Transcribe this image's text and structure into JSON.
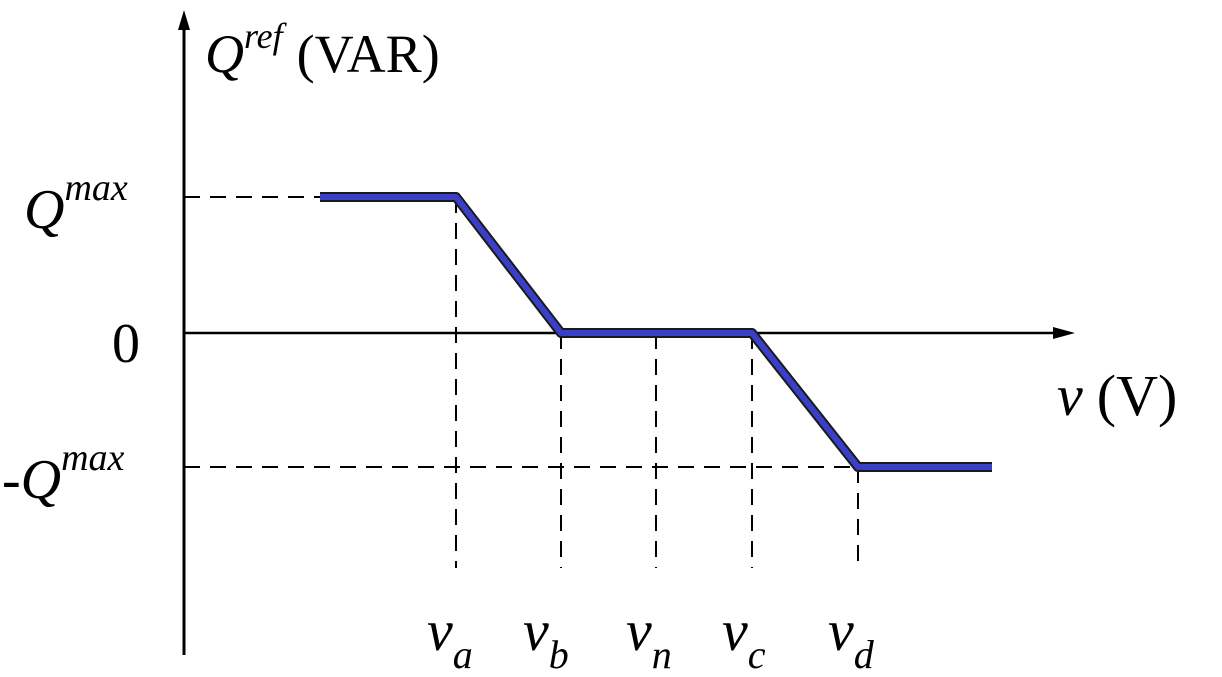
{
  "diagram": {
    "y_axis_label": {
      "symbol": "Q",
      "superscript": "ref",
      "unit": "(VAR)"
    },
    "x_axis_label": {
      "symbol": "v",
      "unit": "(V)"
    },
    "y_ticks": {
      "q_max": {
        "prefix": "",
        "symbol": "Q",
        "superscript": "max"
      },
      "zero": "0",
      "q_min": {
        "prefix": "-",
        "symbol": "Q",
        "superscript": "max"
      }
    },
    "x_ticks": [
      {
        "symbol": "v",
        "subscript": "a"
      },
      {
        "symbol": "v",
        "subscript": "b"
      },
      {
        "symbol": "v",
        "subscript": "n"
      },
      {
        "symbol": "v",
        "subscript": "c"
      },
      {
        "symbol": "v",
        "subscript": "d"
      }
    ],
    "colors": {
      "curve": "#3a3fc8",
      "curve_outline": "#1a1a1a",
      "axes": "#000000",
      "guides": "#000000"
    }
  }
}
